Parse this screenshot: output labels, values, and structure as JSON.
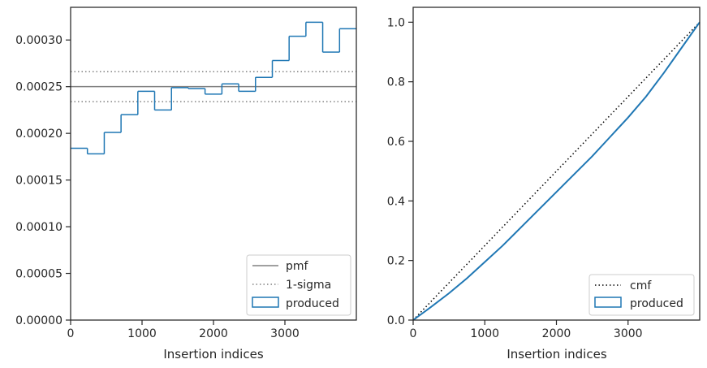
{
  "chart_data": [
    {
      "type": "line",
      "xlabel": "Insertion indices",
      "ylabel": "",
      "xlim": [
        0,
        4000
      ],
      "ylim": [
        0,
        0.000335
      ],
      "xticks": [
        {
          "v": 0,
          "label": "0"
        },
        {
          "v": 1000,
          "label": "1000"
        },
        {
          "v": 2000,
          "label": "2000"
        },
        {
          "v": 3000,
          "label": "3000"
        }
      ],
      "yticks": [
        {
          "v": 0.0,
          "label": "0.00000"
        },
        {
          "v": 5e-05,
          "label": "0.00005"
        },
        {
          "v": 0.0001,
          "label": "0.00010"
        },
        {
          "v": 0.00015,
          "label": "0.00015"
        },
        {
          "v": 0.0002,
          "label": "0.00020"
        },
        {
          "v": 0.00025,
          "label": "0.00025"
        },
        {
          "v": 0.0003,
          "label": "0.00030"
        }
      ],
      "legend_position": "bottom-right",
      "pmf": {
        "name": "pmf",
        "value": 0.00025,
        "color": "#808080"
      },
      "sigma": {
        "name": "1-sigma",
        "values": [
          0.000234,
          0.000266
        ],
        "color": "#808080"
      },
      "hist": {
        "name": "produced",
        "color": "#1f77b4",
        "bin_edges": [
          0,
          235,
          471,
          706,
          941,
          1176,
          1412,
          1647,
          1882,
          2118,
          2353,
          2588,
          2824,
          3059,
          3294,
          3529,
          3765,
          4000
        ],
        "values": [
          0.000184,
          0.000178,
          0.000201,
          0.00022,
          0.000245,
          0.000225,
          0.000249,
          0.000248,
          0.000242,
          0.000253,
          0.000245,
          0.00026,
          0.000278,
          0.000304,
          0.000319,
          0.000287,
          0.000312
        ]
      }
    },
    {
      "type": "line",
      "xlabel": "Insertion indices",
      "ylabel": "",
      "xlim": [
        0,
        4000
      ],
      "ylim": [
        0,
        1.05
      ],
      "xticks": [
        {
          "v": 0,
          "label": "0"
        },
        {
          "v": 1000,
          "label": "1000"
        },
        {
          "v": 2000,
          "label": "2000"
        },
        {
          "v": 3000,
          "label": "3000"
        }
      ],
      "yticks": [
        {
          "v": 0.0,
          "label": "0.0"
        },
        {
          "v": 0.2,
          "label": "0.2"
        },
        {
          "v": 0.4,
          "label": "0.4"
        },
        {
          "v": 0.6,
          "label": "0.6"
        },
        {
          "v": 0.8,
          "label": "0.8"
        },
        {
          "v": 1.0,
          "label": "1.0"
        }
      ],
      "legend_position": "bottom-right",
      "cmf": {
        "name": "cmf",
        "x": [
          0,
          4000
        ],
        "y": [
          0,
          1.0
        ],
        "color": "#000000"
      },
      "produced": {
        "name": "produced",
        "color": "#1f77b4",
        "x": [
          0,
          250,
          500,
          750,
          1000,
          1250,
          1500,
          1750,
          2000,
          2250,
          2500,
          2750,
          3000,
          3250,
          3500,
          3750,
          4000
        ],
        "y": [
          0,
          0.044,
          0.09,
          0.14,
          0.195,
          0.25,
          0.31,
          0.37,
          0.43,
          0.49,
          0.55,
          0.615,
          0.68,
          0.75,
          0.83,
          0.915,
          1.0
        ]
      }
    }
  ]
}
